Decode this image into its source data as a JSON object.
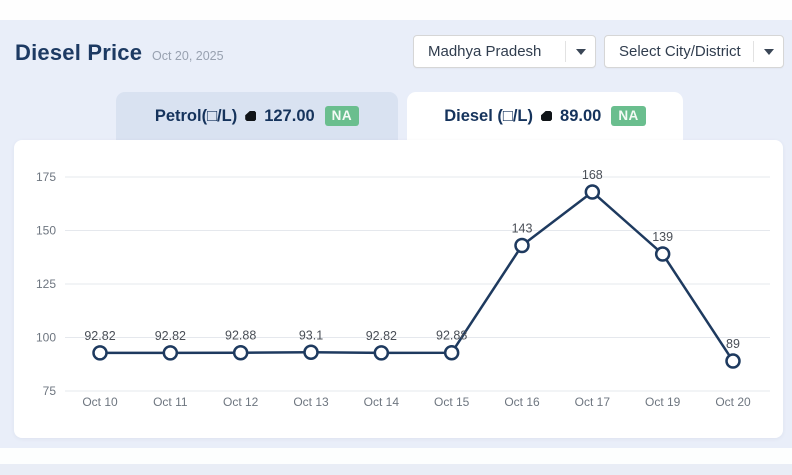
{
  "header": {
    "title": "Diesel Price",
    "date": "Oct 20, 2025",
    "state_dropdown": {
      "value": "Madhya Pradesh"
    },
    "city_dropdown": {
      "value": "Select City/District"
    }
  },
  "tabs": {
    "petrol": {
      "label": "Petrol(□/L)",
      "price": "127.00",
      "badge": "NA"
    },
    "diesel": {
      "label": "Diesel (□/L)",
      "price": "89.00",
      "badge": "NA"
    }
  },
  "chart_data": {
    "type": "line",
    "title": "",
    "xlabel": "",
    "ylabel": "",
    "categories": [
      "Oct 10",
      "Oct 11",
      "Oct 12",
      "Oct 13",
      "Oct 14",
      "Oct 15",
      "Oct 16",
      "Oct 17",
      "Oct 19",
      "Oct 20"
    ],
    "values": [
      92.82,
      92.82,
      92.88,
      93.1,
      92.82,
      92.88,
      143,
      168,
      139,
      89
    ],
    "point_labels": [
      "92.82",
      "92.82",
      "92.88",
      "93.1",
      "92.82",
      "92.88",
      "143",
      "168",
      "139",
      "89"
    ],
    "ylim": [
      75,
      175
    ],
    "yticks": [
      75,
      100,
      125,
      150,
      175
    ],
    "grid": true,
    "legend": "none",
    "line_color": "#1e3a5f",
    "marker": "open-circle"
  },
  "colors": {
    "accent_navy": "#1e3a5f",
    "page_bg": "#e9eef9",
    "tab_inactive_bg": "#d9e2f1",
    "badge_green": "#6abe8e",
    "grid": "#e5e8ed",
    "text_muted": "#6e7680"
  }
}
